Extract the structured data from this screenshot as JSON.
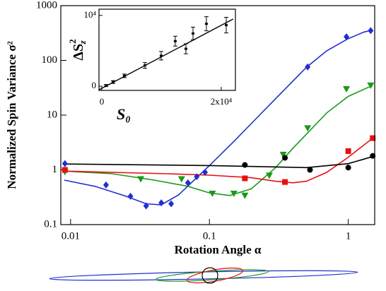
{
  "chart_data": [
    {
      "type": "line",
      "xlabel": "Rotation Angle α",
      "ylabel": "Normalized Spin Variance σ²",
      "xscale": "log",
      "yscale": "log",
      "xlim": [
        0.0085,
        1.55
      ],
      "ylim": [
        0.1,
        1000
      ],
      "xticks": [
        0.01,
        0.1,
        1
      ],
      "yticks": [
        0.1,
        1,
        10,
        100,
        1000
      ],
      "series": [
        {
          "color": "#1f2fd0",
          "marker": "none",
          "x": [
            0.009,
            0.015,
            0.025,
            0.035,
            0.045,
            0.06,
            0.08,
            0.1,
            0.15,
            0.2,
            0.3,
            0.5,
            0.7,
            1,
            1.3,
            1.5
          ],
          "values": [
            0.65,
            0.5,
            0.33,
            0.24,
            0.23,
            0.35,
            0.7,
            1.2,
            3.3,
            7,
            20,
            75,
            150,
            250,
            330,
            360
          ]
        },
        {
          "color": "#1a9a1a",
          "marker": "none",
          "x": [
            0.009,
            0.02,
            0.04,
            0.07,
            0.1,
            0.14,
            0.2,
            0.3,
            0.4,
            0.5,
            0.7,
            1,
            1.5
          ],
          "values": [
            0.95,
            0.85,
            0.65,
            0.5,
            0.38,
            0.34,
            0.45,
            1.1,
            2.5,
            4.5,
            11,
            22,
            35
          ]
        },
        {
          "color": "#e81010",
          "marker": "none",
          "x": [
            0.009,
            0.05,
            0.1,
            0.2,
            0.3,
            0.4,
            0.5,
            0.7,
            1,
            1.5
          ],
          "values": [
            0.95,
            0.85,
            0.8,
            0.72,
            0.62,
            0.58,
            0.62,
            0.9,
            1.7,
            3.8
          ]
        },
        {
          "color": "#000000",
          "marker": "none",
          "x": [
            0.009,
            0.1,
            0.5,
            1,
            1.5
          ],
          "values": [
            1.28,
            1.2,
            1.1,
            1.3,
            1.75
          ]
        },
        {
          "color": "#1f2fd0",
          "marker": "diamond",
          "x": [
            0.0091,
            0.018,
            0.027,
            0.035,
            0.045,
            0.053,
            0.07,
            0.081,
            0.093,
            0.51,
            0.97,
            1.45
          ],
          "values": [
            1.3,
            0.53,
            0.33,
            0.22,
            0.25,
            0.24,
            0.58,
            0.75,
            0.9,
            76,
            270,
            350
          ]
        },
        {
          "color": "#1a9a1a",
          "marker": "triangle",
          "x": [
            0.0091,
            0.032,
            0.063,
            0.105,
            0.15,
            0.18,
            0.27,
            0.34,
            0.51,
            0.97,
            1.45
          ],
          "values": [
            0.92,
            0.68,
            0.68,
            0.37,
            0.37,
            0.34,
            0.79,
            1.9,
            5.8,
            30,
            35
          ]
        },
        {
          "color": "#e81010",
          "marker": "square",
          "x": [
            0.0091,
            0.18,
            0.35,
            1.0,
            1.5
          ],
          "values": [
            1.0,
            0.7,
            0.6,
            2.2,
            3.8
          ]
        },
        {
          "color": "#000000",
          "marker": "circle",
          "x": [
            0.18,
            0.35,
            0.53,
            1.0,
            1.5
          ],
          "values": [
            1.23,
            1.66,
            1.0,
            1.1,
            1.8
          ]
        }
      ]
    },
    {
      "type": "scatter",
      "xlabel": "S₀",
      "ylabel": {
        "base": "ΔS",
        "sub": "z",
        "sup": "2"
      },
      "xlim": [
        -470,
        22370
      ],
      "ylim": [
        -590,
        10880
      ],
      "xticks": [
        0,
        {
          "value": 20000,
          "label": "2x10⁴"
        }
      ],
      "yticks": [
        0,
        {
          "value": 10000,
          "label": "10⁴"
        }
      ],
      "x": [
        710,
        1890,
        3790,
        7220,
        9940,
        12300,
        14080,
        15270,
        17510,
        20830
      ],
      "values": [
        100,
        590,
        1470,
        2940,
        4310,
        6370,
        5290,
        7450,
        8820,
        8630
      ],
      "errors": [
        150,
        200,
        250,
        400,
        600,
        700,
        700,
        900,
        1000,
        1100
      ],
      "fit": {
        "x": [
          -470,
          22000
        ],
        "values": [
          -500,
          9500
        ]
      }
    }
  ]
}
